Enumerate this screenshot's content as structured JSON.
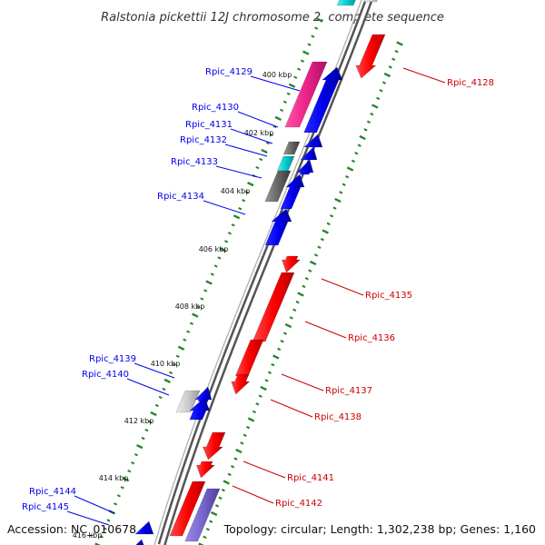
{
  "title": "Ralstonia pickettii 12J chromosome 2, complete sequence",
  "footer": {
    "accession": "Accession: NC_010678",
    "topology": "Topology: circular; Length: 1,302,238 bp; Genes: 1,160"
  },
  "kbp_labels": [
    "400 kbp",
    "402 kbp",
    "404 kbp",
    "406 kbp",
    "408 kbp",
    "410 kbp",
    "412 kbp",
    "414 kbp",
    "416 kbp"
  ],
  "colors": {
    "forward": "#0000ee",
    "reverse": "#ff0000",
    "pink": "#ee2288",
    "cyan": "#00cccc",
    "gray": "#666666",
    "lightgray": "#c8c8c8",
    "purple": "#7766cc",
    "backbone": "#888888",
    "tick": "#228822"
  },
  "gene_labels": {
    "left": [
      "Rpic_4129",
      "Rpic_4130",
      "Rpic_4131",
      "Rpic_4132",
      "Rpic_4133",
      "Rpic_4134",
      "Rpic_4139",
      "Rpic_4140",
      "Rpic_4144",
      "Rpic_4145"
    ],
    "right": [
      "Rpic_4128",
      "Rpic_4135",
      "Rpic_4136",
      "Rpic_4137",
      "Rpic_4138",
      "Rpic_4141",
      "Rpic_4142"
    ]
  }
}
